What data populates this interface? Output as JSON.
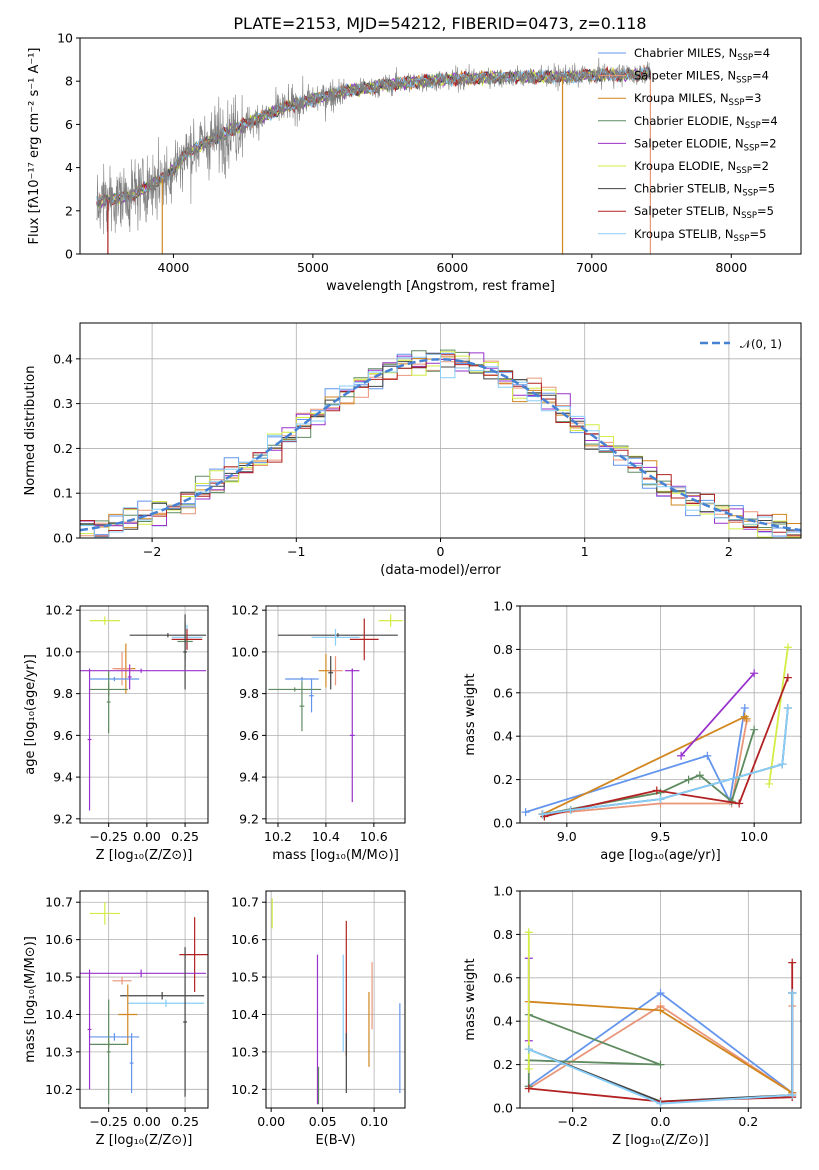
{
  "title": "PLATE=2153, MJD=54212, FIBERID=0473, z=0.118",
  "chart_data": [
    {
      "id": "spectrum",
      "type": "line",
      "title": "PLATE=2153, MJD=54212, FIBERID=0473, z=0.118",
      "xlabel": "wavelength [Angstrom, rest frame]",
      "ylabel": "Flux [fλ10⁻¹⁷ erg cm⁻² s⁻¹ A⁻¹]",
      "xlim": [
        3330,
        8500
      ],
      "ylim": [
        0,
        10
      ],
      "xticks": [
        4000,
        5000,
        6000,
        7000,
        8000
      ],
      "yticks": [
        0,
        2,
        4,
        6,
        8,
        10
      ],
      "grid": false,
      "legend_position": "right",
      "series": [
        {
          "name": "Chabrier MILES, N_SSP=4",
          "color": "#6495ed"
        },
        {
          "name": "Salpeter MILES, N_SSP=4",
          "color": "#e9967a"
        },
        {
          "name": "Kroupa MILES, N_SSP=3",
          "color": "#d2861e"
        },
        {
          "name": "Chabrier ELODIE, N_SSP=4",
          "color": "#5f8b60"
        },
        {
          "name": "Salpeter ELODIE, N_SSP=2",
          "color": "#9932cc"
        },
        {
          "name": "Kroupa ELODIE, N_SSP=2",
          "color": "#d4ec45"
        },
        {
          "name": "Chabrier STELIB, N_SSP=5",
          "color": "#444444"
        },
        {
          "name": "Salpeter STELIB, N_SSP=5",
          "color": "#b22222"
        },
        {
          "name": "Kroupa STELIB, N_SSP=5",
          "color": "#87cefa"
        }
      ],
      "continuum_points": [
        [
          3450,
          2.4
        ],
        [
          3700,
          2.7
        ],
        [
          3950,
          3.6
        ],
        [
          4100,
          4.7
        ],
        [
          4400,
          5.7
        ],
        [
          4800,
          6.8
        ],
        [
          5200,
          7.5
        ],
        [
          5600,
          7.9
        ],
        [
          6000,
          8.1
        ],
        [
          6400,
          8.2
        ],
        [
          6800,
          8.2
        ],
        [
          7100,
          8.3
        ],
        [
          7300,
          8.3
        ],
        [
          7420,
          8.4
        ]
      ],
      "data_color": "#808080"
    },
    {
      "id": "residuals",
      "type": "line",
      "xlabel": "(data-model)/error",
      "ylabel": "Normed distribution",
      "xlim": [
        -2.5,
        2.5
      ],
      "ylim": [
        0,
        0.48
      ],
      "xticks": [
        -2,
        -1,
        0,
        1,
        2
      ],
      "yticks": [
        0.0,
        0.1,
        0.2,
        0.3,
        0.4
      ],
      "grid": true,
      "legend": "𝒩(0, 1)",
      "legend_position": "top-right",
      "gaussian": {
        "mean": 0,
        "sigma": 1,
        "color": "#4682d4"
      }
    },
    {
      "id": "age_vs_Z",
      "type": "scatter",
      "xlabel": "Z [log₁₀(Z/Z⊙)]",
      "ylabel": "age  [log₁₀(age/yr)]",
      "xlim": [
        -0.35,
        0.32
      ],
      "ylim": [
        9.18,
        10.22
      ],
      "xticks": [
        -0.2,
        0.0,
        0.2
      ],
      "xtick_labels": [
        "−0.25",
        "0.00",
        "0.25"
      ],
      "yticks": [
        9.2,
        9.4,
        9.6,
        9.8,
        10.0,
        10.2
      ],
      "grid": true,
      "points": [
        {
          "c": "#d4ec45",
          "x": -0.22,
          "xe": 0.08,
          "y": 10.15,
          "ye": 0.02
        },
        {
          "c": "#444444",
          "x": 0.11,
          "xe": 0.2,
          "y": 10.08,
          "ye": 0.01
        },
        {
          "c": "#87cefa",
          "x": 0.21,
          "xe": 0.08,
          "y": 10.07,
          "ye": 0.06
        },
        {
          "c": "#b22222",
          "x": 0.21,
          "xe": 0.08,
          "y": 10.06,
          "ye": 0.05
        },
        {
          "c": "#5f8b60",
          "x": 0.2,
          "xe": 0.04,
          "y": 10.05,
          "ye": 0.09
        },
        {
          "c": "#444444",
          "x": 0.2,
          "xe": 0.01,
          "y": 10.0,
          "ye": 0.18
        },
        {
          "c": "#d2861e",
          "x": -0.11,
          "xe": 0.05,
          "y": 9.92,
          "ye": 0.12
        },
        {
          "c": "#e9967a",
          "x": -0.13,
          "xe": 0.05,
          "y": 9.92,
          "ye": 0.08
        },
        {
          "c": "#9932cc",
          "x": -0.03,
          "xe": 0.34,
          "y": 9.91,
          "ye": 0.01
        },
        {
          "c": "#9932cc",
          "x": -0.3,
          "xe": 0.01,
          "y": 9.58,
          "ye": 0.34
        },
        {
          "c": "#6495ed",
          "x": -0.17,
          "xe": 0.13,
          "y": 9.87,
          "ye": 0.01
        },
        {
          "c": "#5f8b60",
          "x": -0.2,
          "xe": 0.1,
          "y": 9.82,
          "ye": 0.03
        },
        {
          "c": "#9932cc",
          "x": -0.09,
          "xe": 0.01,
          "y": 9.88,
          "ye": 0.06
        },
        {
          "c": "#5f8b60",
          "x": -0.2,
          "xe": 0.01,
          "y": 9.76,
          "ye": 0.15
        }
      ]
    },
    {
      "id": "age_vs_mass",
      "type": "scatter",
      "xlabel": "mass [log₁₀(M/M⊙)]",
      "ylabel": "",
      "xlim": [
        10.15,
        10.73
      ],
      "ylim": [
        9.18,
        10.22
      ],
      "xticks": [
        10.2,
        10.4,
        10.6
      ],
      "yticks": [
        9.2,
        9.4,
        9.6,
        9.8,
        10.0,
        10.2
      ],
      "grid": true,
      "points": [
        {
          "c": "#d4ec45",
          "x": 10.67,
          "xe": 0.05,
          "y": 10.15,
          "ye": 0.03
        },
        {
          "c": "#444444",
          "x": 10.45,
          "xe": 0.25,
          "y": 10.08,
          "ye": 0.01
        },
        {
          "c": "#87cefa",
          "x": 10.44,
          "xe": 0.1,
          "y": 10.07,
          "ye": 0.04
        },
        {
          "c": "#b22222",
          "x": 10.56,
          "xe": 0.06,
          "y": 10.06,
          "ye": 0.1
        },
        {
          "c": "#d2861e",
          "x": 10.4,
          "xe": 0.03,
          "y": 9.91,
          "ye": 0.08
        },
        {
          "c": "#e9967a",
          "x": 10.44,
          "xe": 0.03,
          "y": 9.91,
          "ye": 0.07
        },
        {
          "c": "#9932cc",
          "x": 10.51,
          "xe": 0.03,
          "y": 9.91,
          "ye": 0.01
        },
        {
          "c": "#9932cc",
          "x": 10.51,
          "xe": 0.01,
          "y": 9.6,
          "ye": 0.32
        },
        {
          "c": "#6495ed",
          "x": 10.3,
          "xe": 0.07,
          "y": 9.87,
          "ye": 0.01
        },
        {
          "c": "#6495ed",
          "x": 10.34,
          "xe": 0.01,
          "y": 9.79,
          "ye": 0.08
        },
        {
          "c": "#5f8b60",
          "x": 10.27,
          "xe": 0.11,
          "y": 9.82,
          "ye": 0.01
        },
        {
          "c": "#5f8b60",
          "x": 10.3,
          "xe": 0.01,
          "y": 9.74,
          "ye": 0.12
        },
        {
          "c": "#444444",
          "x": 10.42,
          "xe": 0.01,
          "y": 9.9,
          "ye": 0.08
        }
      ]
    },
    {
      "id": "massweight_vs_age",
      "type": "line",
      "xlabel": "age  [log₁₀(age/yr)]",
      "ylabel": "mass weight",
      "xlim": [
        8.75,
        10.25
      ],
      "ylim": [
        0.0,
        1.0
      ],
      "xticks": [
        9.0,
        9.5,
        10.0
      ],
      "yticks": [
        0.0,
        0.2,
        0.4,
        0.6,
        0.8,
        1.0
      ],
      "grid": true,
      "series": [
        {
          "color": "#6495ed",
          "x": [
            8.78,
            9.75,
            9.87,
            9.95
          ],
          "y": [
            0.05,
            0.31,
            0.1,
            0.53
          ]
        },
        {
          "color": "#e9967a",
          "x": [
            8.87,
            9.5,
            9.88,
            9.96
          ],
          "y": [
            0.04,
            0.09,
            0.09,
            0.47
          ]
        },
        {
          "color": "#d2861e",
          "x": [
            8.87,
            9.95,
            9.96
          ],
          "y": [
            0.04,
            0.49,
            0.48
          ]
        },
        {
          "color": "#5f8b60",
          "x": [
            8.87,
            9.5,
            9.65,
            9.71,
            9.88,
            10.0
          ],
          "y": [
            0.04,
            0.14,
            0.2,
            0.22,
            0.1,
            0.43
          ]
        },
        {
          "color": "#9932cc",
          "x": [
            9.61,
            10.0
          ],
          "y": [
            0.31,
            0.69
          ]
        },
        {
          "color": "#d4ec45",
          "x": [
            10.08,
            10.18
          ],
          "y": [
            0.18,
            0.81
          ]
        },
        {
          "color": "#444444",
          "x": [
            8.87,
            9.02,
            9.5,
            10.15,
            10.18
          ],
          "y": [
            0.04,
            0.06,
            0.11,
            0.27,
            0.53
          ]
        },
        {
          "color": "#b22222",
          "x": [
            8.88,
            9.02,
            9.48,
            9.92,
            10.18
          ],
          "y": [
            0.03,
            0.06,
            0.15,
            0.09,
            0.67
          ]
        },
        {
          "color": "#87cefa",
          "x": [
            8.87,
            9.02,
            9.5,
            10.15,
            10.18
          ],
          "y": [
            0.04,
            0.06,
            0.11,
            0.27,
            0.53
          ]
        }
      ]
    },
    {
      "id": "mass_vs_Z",
      "type": "scatter",
      "xlabel": "Z [log₁₀(Z/Z⊙)]",
      "ylabel": "mass [log₁₀(M/M⊙)]",
      "xlim": [
        -0.35,
        0.32
      ],
      "ylim": [
        10.15,
        10.73
      ],
      "xticks": [
        -0.2,
        0.0,
        0.2
      ],
      "xtick_labels": [
        "−0.25",
        "0.00",
        "0.25"
      ],
      "yticks": [
        10.2,
        10.3,
        10.4,
        10.5,
        10.6,
        10.7
      ],
      "grid": true,
      "points": [
        {
          "c": "#d4ec45",
          "x": -0.22,
          "xe": 0.08,
          "y": 10.67,
          "ye": 0.03
        },
        {
          "c": "#b22222",
          "x": 0.25,
          "xe": 0.08,
          "y": 10.56,
          "ye": 0.1
        },
        {
          "c": "#9932cc",
          "x": -0.03,
          "xe": 0.34,
          "y": 10.51,
          "ye": 0.01
        },
        {
          "c": "#e9967a",
          "x": -0.13,
          "xe": 0.05,
          "y": 10.49,
          "ye": 0.01
        },
        {
          "c": "#444444",
          "x": 0.08,
          "xe": 0.22,
          "y": 10.45,
          "ye": 0.01
        },
        {
          "c": "#87cefa",
          "x": 0.1,
          "xe": 0.2,
          "y": 10.43,
          "ye": 0.01
        },
        {
          "c": "#d2861e",
          "x": -0.1,
          "xe": 0.05,
          "y": 10.4,
          "ye": 0.08
        },
        {
          "c": "#6495ed",
          "x": -0.17,
          "xe": 0.13,
          "y": 10.34,
          "ye": 0.01
        },
        {
          "c": "#5f8b60",
          "x": -0.2,
          "xe": 0.1,
          "y": 10.32,
          "ye": 0.01
        },
        {
          "c": "#9932cc",
          "x": -0.3,
          "xe": 0.01,
          "y": 10.36,
          "ye": 0.16
        },
        {
          "c": "#5f8b60",
          "x": -0.2,
          "xe": 0.01,
          "y": 10.3,
          "ye": 0.14
        },
        {
          "c": "#6495ed",
          "x": -0.08,
          "xe": 0.01,
          "y": 10.27,
          "ye": 0.08
        },
        {
          "c": "#444444",
          "x": 0.2,
          "xe": 0.01,
          "y": 10.38,
          "ye": 0.2
        }
      ]
    },
    {
      "id": "mass_vs_ebv",
      "type": "scatter",
      "xlabel": "E(B-V)",
      "ylabel": "",
      "xlim": [
        -0.005,
        0.13
      ],
      "ylim": [
        10.15,
        10.73
      ],
      "xticks": [
        0.0,
        0.05,
        0.1
      ],
      "xtick_labels": [
        "0.00",
        "0.05",
        "0.10"
      ],
      "yticks": [
        10.2,
        10.3,
        10.4,
        10.5,
        10.6,
        10.7
      ],
      "grid": true,
      "points": [
        {
          "c": "#d4ec45",
          "x": 0.001,
          "xe": 0.0,
          "y": 10.67,
          "ye": 0.04
        },
        {
          "c": "#9932cc",
          "x": 0.045,
          "xe": 0.0,
          "y": 10.36,
          "ye": 0.2
        },
        {
          "c": "#5f8b60",
          "x": 0.046,
          "xe": 0.0,
          "y": 10.21,
          "ye": 0.05
        },
        {
          "c": "#b22222",
          "x": 0.073,
          "xe": 0.0,
          "y": 10.47,
          "ye": 0.18
        },
        {
          "c": "#87cefa",
          "x": 0.07,
          "xe": 0.0,
          "y": 10.43,
          "ye": 0.13
        },
        {
          "c": "#444444",
          "x": 0.073,
          "xe": 0.0,
          "y": 10.27,
          "ye": 0.08
        },
        {
          "c": "#d2861e",
          "x": 0.095,
          "xe": 0.0,
          "y": 10.36,
          "ye": 0.1
        },
        {
          "c": "#e9967a",
          "x": 0.098,
          "xe": 0.0,
          "y": 10.45,
          "ye": 0.09
        },
        {
          "c": "#6495ed",
          "x": 0.125,
          "xe": 0.0,
          "y": 10.31,
          "ye": 0.12
        }
      ]
    },
    {
      "id": "massweight_vs_Z",
      "type": "line",
      "xlabel": "Z [log₁₀(Z/Z⊙)]",
      "ylabel": "mass weight",
      "xlim": [
        -0.32,
        0.32
      ],
      "ylim": [
        0.0,
        1.0
      ],
      "xticks": [
        -0.2,
        0.0,
        0.2
      ],
      "xtick_labels": [
        "−0.2",
        "0.0",
        "0.2"
      ],
      "yticks": [
        0.0,
        0.2,
        0.4,
        0.6,
        0.8,
        1.0
      ],
      "grid": true,
      "series": [
        {
          "color": "#6495ed",
          "x": [
            -0.3,
            0.0,
            0.3,
            0.3
          ],
          "y": [
            0.1,
            0.53,
            0.07,
            0.53
          ]
        },
        {
          "color": "#e9967a",
          "x": [
            -0.3,
            0.0,
            0.3,
            0.3
          ],
          "y": [
            0.09,
            0.47,
            0.07,
            0.47
          ]
        },
        {
          "color": "#d2861e",
          "x": [
            -0.3,
            0.0,
            0.3
          ],
          "y": [
            0.49,
            0.45,
            0.07
          ]
        },
        {
          "color": "#5f8b60",
          "x": [
            -0.3,
            0.0,
            -0.3,
            -0.3
          ],
          "y": [
            0.43,
            0.2,
            0.22,
            0.1
          ]
        },
        {
          "color": "#9932cc",
          "x": [
            -0.3,
            -0.3
          ],
          "y": [
            0.31,
            0.69
          ]
        },
        {
          "color": "#d4ec45",
          "x": [
            -0.3,
            -0.3
          ],
          "y": [
            0.18,
            0.81
          ]
        },
        {
          "color": "#444444",
          "x": [
            -0.3,
            0.0,
            0.3,
            0.3
          ],
          "y": [
            0.27,
            0.03,
            0.06,
            0.53
          ]
        },
        {
          "color": "#b22222",
          "x": [
            -0.3,
            0.0,
            0.3,
            0.3
          ],
          "y": [
            0.09,
            0.03,
            0.05,
            0.67
          ]
        },
        {
          "color": "#87cefa",
          "x": [
            -0.3,
            0.0,
            0.3,
            0.3
          ],
          "y": [
            0.27,
            0.02,
            0.06,
            0.53
          ]
        }
      ]
    }
  ]
}
